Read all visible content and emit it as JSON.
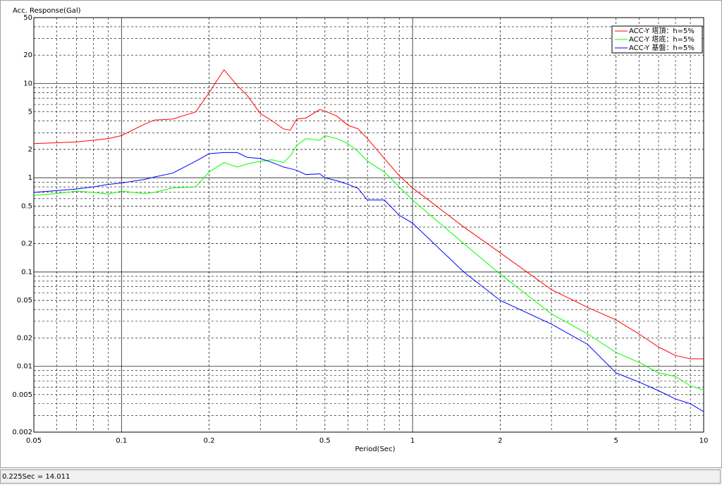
{
  "chart_data": {
    "type": "line",
    "y_label": "Acc. Response(Gal)",
    "x_label": "Period(Sec)",
    "xlog": true,
    "ylog": true,
    "grid": true,
    "legend": "upper right",
    "x": [
      0.05,
      0.06,
      0.07,
      0.08,
      0.09,
      0.1,
      0.12,
      0.13,
      0.15,
      0.18,
      0.2,
      0.225,
      0.25,
      0.27,
      0.3,
      0.33,
      0.36,
      0.38,
      0.4,
      0.43,
      0.48,
      0.5,
      0.55,
      0.6,
      0.65,
      0.7,
      0.8,
      0.9,
      1,
      1.5,
      2,
      3,
      4,
      5,
      6,
      7,
      8,
      9,
      10
    ],
    "series": [
      {
        "name": "ACC-Y 塔頂：h=5%",
        "color": "#ff0000",
        "values": [
          2.3,
          2.35,
          2.4,
          2.5,
          2.6,
          2.8,
          3.7,
          4.1,
          4.2,
          5,
          8,
          14,
          9.5,
          7.5,
          4.8,
          4,
          3.3,
          3.2,
          4.2,
          4.3,
          5.3,
          5.1,
          4.5,
          3.6,
          3.3,
          2.6,
          1.6,
          1.05,
          0.78,
          0.3,
          0.16,
          0.065,
          0.042,
          0.031,
          0.022,
          0.016,
          0.013,
          0.012,
          0.012
        ]
      },
      {
        "name": "ACC-Y 塔底：h=5%",
        "color": "#00ff00",
        "values": [
          0.65,
          0.68,
          0.72,
          0.7,
          0.67,
          0.72,
          0.68,
          0.7,
          0.78,
          0.8,
          1.15,
          1.45,
          1.3,
          1.4,
          1.5,
          1.55,
          1.45,
          1.7,
          2.2,
          2.6,
          2.5,
          2.8,
          2.6,
          2.3,
          1.9,
          1.5,
          1.15,
          0.8,
          0.58,
          0.2,
          0.095,
          0.036,
          0.022,
          0.014,
          0.011,
          0.0085,
          0.0078,
          0.0062,
          0.0056
        ]
      },
      {
        "name": "ACC-Y 基盤：h=5%",
        "color": "#0000ff",
        "values": [
          0.7,
          0.73,
          0.76,
          0.8,
          0.85,
          0.88,
          0.96,
          1.02,
          1.12,
          1.5,
          1.8,
          1.85,
          1.85,
          1.65,
          1.6,
          1.45,
          1.3,
          1.25,
          1.2,
          1.08,
          1.1,
          1.0,
          0.93,
          0.85,
          0.77,
          0.58,
          0.58,
          0.4,
          0.33,
          0.1,
          0.05,
          0.028,
          0.017,
          0.0085,
          0.0068,
          0.0055,
          0.0045,
          0.004,
          0.0033
        ]
      }
    ],
    "xlim": [
      0.05,
      10
    ],
    "xticks": [
      0.05,
      0.1,
      0.2,
      0.5,
      1,
      2,
      5,
      10
    ],
    "ylim": [
      0.002,
      50
    ],
    "yticks": [
      50,
      20,
      10,
      5,
      2,
      1,
      0.5,
      0.2,
      0.1,
      0.05,
      0.02,
      0.01,
      0.005,
      0.002
    ]
  },
  "status_bar": {
    "text": "0.225Sec = 14.011"
  }
}
